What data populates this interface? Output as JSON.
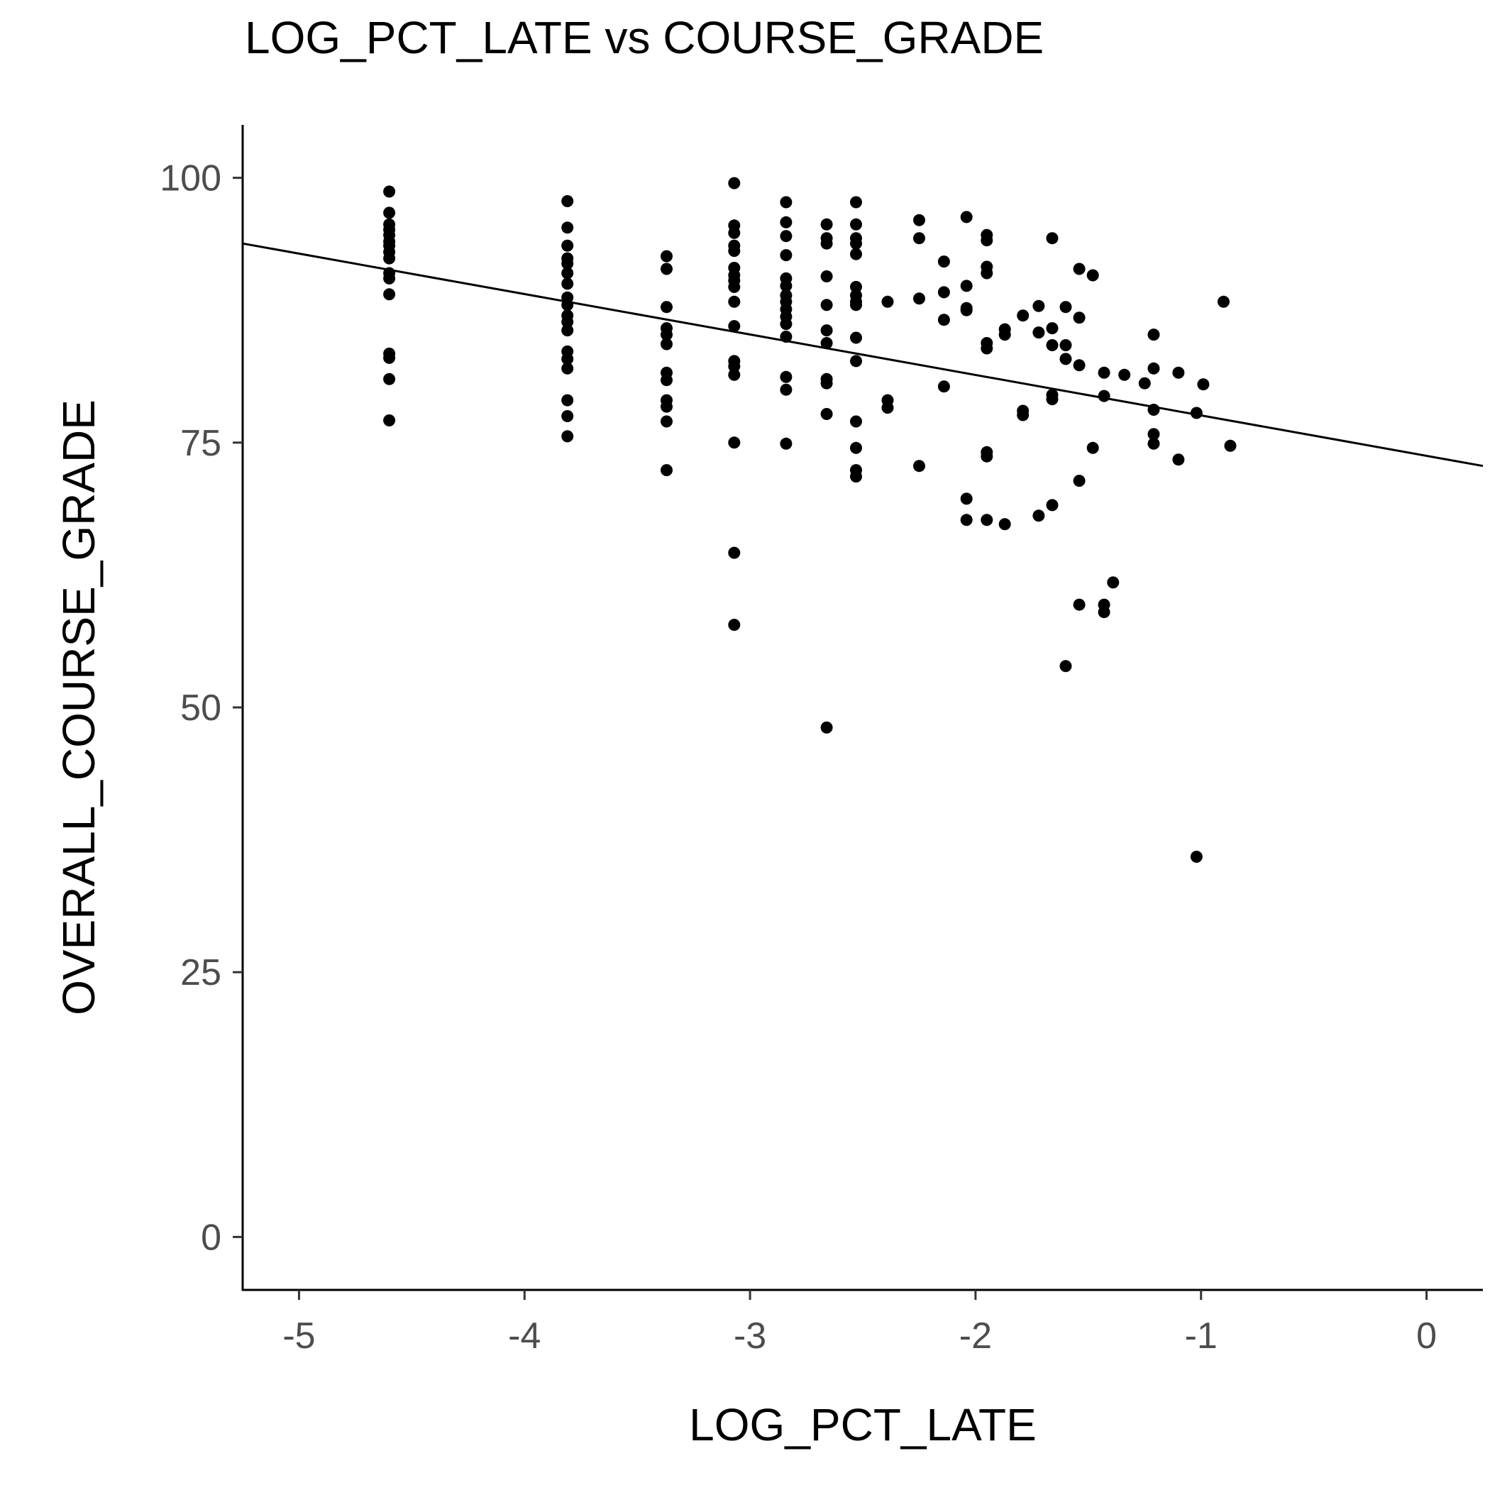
{
  "chart_data": {
    "type": "scatter",
    "title": "LOG_PCT_LATE vs COURSE_GRADE",
    "xlabel": "LOG_PCT_LATE",
    "ylabel": "OVERALL_COURSE_GRADE",
    "xlim": [
      -5.25,
      0.25
    ],
    "ylim": [
      -5,
      105
    ],
    "x_ticks": [
      -5,
      -4,
      -3,
      -2,
      -1,
      0
    ],
    "x_tick_labels": [
      "-5",
      "-4",
      "-3",
      "-2",
      "-1",
      "0"
    ],
    "y_ticks": [
      0,
      25,
      50,
      75,
      100
    ],
    "y_tick_labels": [
      "0",
      "25",
      "50",
      "75",
      "100"
    ],
    "grid": false,
    "legend": "none",
    "regression_line": {
      "x": [
        -5.25,
        0.25
      ],
      "y": [
        93.8,
        72.8
      ]
    },
    "points": [
      {
        "x": -4.6,
        "y": 98.7
      },
      {
        "x": -4.6,
        "y": 96.7
      },
      {
        "x": -4.6,
        "y": 95.6
      },
      {
        "x": -4.6,
        "y": 95.1
      },
      {
        "x": -4.6,
        "y": 94.6
      },
      {
        "x": -4.6,
        "y": 94.0
      },
      {
        "x": -4.6,
        "y": 93.6
      },
      {
        "x": -4.6,
        "y": 93.0
      },
      {
        "x": -4.6,
        "y": 92.4
      },
      {
        "x": -4.6,
        "y": 91.0
      },
      {
        "x": -4.6,
        "y": 90.5
      },
      {
        "x": -4.6,
        "y": 89.0
      },
      {
        "x": -4.6,
        "y": 83.4
      },
      {
        "x": -4.6,
        "y": 83.0
      },
      {
        "x": -4.6,
        "y": 81.0
      },
      {
        "x": -4.6,
        "y": 77.1
      },
      {
        "x": -3.81,
        "y": 97.8
      },
      {
        "x": -3.81,
        "y": 95.3
      },
      {
        "x": -3.81,
        "y": 93.6
      },
      {
        "x": -3.81,
        "y": 92.4
      },
      {
        "x": -3.81,
        "y": 91.9
      },
      {
        "x": -3.81,
        "y": 91.0
      },
      {
        "x": -3.81,
        "y": 90.0
      },
      {
        "x": -3.81,
        "y": 88.7
      },
      {
        "x": -3.81,
        "y": 88.0
      },
      {
        "x": -3.81,
        "y": 87.0
      },
      {
        "x": -3.81,
        "y": 86.4
      },
      {
        "x": -3.81,
        "y": 85.6
      },
      {
        "x": -3.81,
        "y": 83.6
      },
      {
        "x": -3.81,
        "y": 82.9
      },
      {
        "x": -3.81,
        "y": 82.0
      },
      {
        "x": -3.81,
        "y": 79.0
      },
      {
        "x": -3.81,
        "y": 77.5
      },
      {
        "x": -3.81,
        "y": 75.6
      },
      {
        "x": -3.37,
        "y": 92.6
      },
      {
        "x": -3.37,
        "y": 91.4
      },
      {
        "x": -3.37,
        "y": 87.8
      },
      {
        "x": -3.37,
        "y": 85.8
      },
      {
        "x": -3.37,
        "y": 85.2
      },
      {
        "x": -3.37,
        "y": 84.3
      },
      {
        "x": -3.37,
        "y": 81.6
      },
      {
        "x": -3.37,
        "y": 80.9
      },
      {
        "x": -3.37,
        "y": 79.0
      },
      {
        "x": -3.37,
        "y": 78.4
      },
      {
        "x": -3.37,
        "y": 77.0
      },
      {
        "x": -3.37,
        "y": 72.4
      },
      {
        "x": -3.07,
        "y": 99.5
      },
      {
        "x": -3.07,
        "y": 95.5
      },
      {
        "x": -3.07,
        "y": 94.8
      },
      {
        "x": -3.07,
        "y": 93.6
      },
      {
        "x": -3.07,
        "y": 93.1
      },
      {
        "x": -3.07,
        "y": 91.5
      },
      {
        "x": -3.07,
        "y": 90.8
      },
      {
        "x": -3.07,
        "y": 90.3
      },
      {
        "x": -3.07,
        "y": 89.7
      },
      {
        "x": -3.07,
        "y": 88.3
      },
      {
        "x": -3.07,
        "y": 86.0
      },
      {
        "x": -3.07,
        "y": 82.7
      },
      {
        "x": -3.07,
        "y": 82.2
      },
      {
        "x": -3.07,
        "y": 81.4
      },
      {
        "x": -3.07,
        "y": 75.0
      },
      {
        "x": -3.07,
        "y": 64.6
      },
      {
        "x": -3.07,
        "y": 57.8
      },
      {
        "x": -2.84,
        "y": 97.7
      },
      {
        "x": -2.84,
        "y": 95.8
      },
      {
        "x": -2.84,
        "y": 94.5
      },
      {
        "x": -2.84,
        "y": 92.7
      },
      {
        "x": -2.84,
        "y": 90.5
      },
      {
        "x": -2.84,
        "y": 89.8
      },
      {
        "x": -2.84,
        "y": 88.9
      },
      {
        "x": -2.84,
        "y": 88.3
      },
      {
        "x": -2.84,
        "y": 87.6
      },
      {
        "x": -2.84,
        "y": 86.9
      },
      {
        "x": -2.84,
        "y": 86.2
      },
      {
        "x": -2.84,
        "y": 85.0
      },
      {
        "x": -2.84,
        "y": 81.2
      },
      {
        "x": -2.84,
        "y": 80.0
      },
      {
        "x": -2.84,
        "y": 74.9
      },
      {
        "x": -2.66,
        "y": 95.6
      },
      {
        "x": -2.66,
        "y": 94.3
      },
      {
        "x": -2.66,
        "y": 93.8
      },
      {
        "x": -2.66,
        "y": 90.7
      },
      {
        "x": -2.66,
        "y": 88.0
      },
      {
        "x": -2.66,
        "y": 85.6
      },
      {
        "x": -2.66,
        "y": 84.4
      },
      {
        "x": -2.66,
        "y": 81.0
      },
      {
        "x": -2.66,
        "y": 80.6
      },
      {
        "x": -2.66,
        "y": 77.7
      },
      {
        "x": -2.66,
        "y": 48.1
      },
      {
        "x": -2.53,
        "y": 97.7
      },
      {
        "x": -2.53,
        "y": 95.6
      },
      {
        "x": -2.53,
        "y": 94.3
      },
      {
        "x": -2.53,
        "y": 93.8
      },
      {
        "x": -2.53,
        "y": 92.8
      },
      {
        "x": -2.53,
        "y": 89.7
      },
      {
        "x": -2.53,
        "y": 88.9
      },
      {
        "x": -2.53,
        "y": 88.3
      },
      {
        "x": -2.53,
        "y": 88.0
      },
      {
        "x": -2.53,
        "y": 84.9
      },
      {
        "x": -2.53,
        "y": 82.7
      },
      {
        "x": -2.53,
        "y": 77.0
      },
      {
        "x": -2.53,
        "y": 74.5
      },
      {
        "x": -2.53,
        "y": 72.4
      },
      {
        "x": -2.53,
        "y": 71.8
      },
      {
        "x": -2.39,
        "y": 88.3
      },
      {
        "x": -2.39,
        "y": 79.0
      },
      {
        "x": -2.39,
        "y": 78.3
      },
      {
        "x": -2.25,
        "y": 96.0
      },
      {
        "x": -2.25,
        "y": 94.3
      },
      {
        "x": -2.25,
        "y": 88.6
      },
      {
        "x": -2.25,
        "y": 72.8
      },
      {
        "x": -2.14,
        "y": 92.1
      },
      {
        "x": -2.14,
        "y": 89.2
      },
      {
        "x": -2.14,
        "y": 86.6
      },
      {
        "x": -2.14,
        "y": 80.3
      },
      {
        "x": -2.04,
        "y": 96.3
      },
      {
        "x": -2.04,
        "y": 89.8
      },
      {
        "x": -2.04,
        "y": 87.7
      },
      {
        "x": -2.04,
        "y": 87.5
      },
      {
        "x": -2.04,
        "y": 69.7
      },
      {
        "x": -2.04,
        "y": 67.7
      },
      {
        "x": -1.95,
        "y": 94.6
      },
      {
        "x": -1.95,
        "y": 94.1
      },
      {
        "x": -1.95,
        "y": 91.6
      },
      {
        "x": -1.95,
        "y": 91.0
      },
      {
        "x": -1.95,
        "y": 84.4
      },
      {
        "x": -1.95,
        "y": 83.9
      },
      {
        "x": -1.95,
        "y": 74.1
      },
      {
        "x": -1.95,
        "y": 73.7
      },
      {
        "x": -1.95,
        "y": 67.7
      },
      {
        "x": -1.87,
        "y": 85.7
      },
      {
        "x": -1.87,
        "y": 85.2
      },
      {
        "x": -1.87,
        "y": 67.3
      },
      {
        "x": -1.79,
        "y": 87.0
      },
      {
        "x": -1.79,
        "y": 78.0
      },
      {
        "x": -1.79,
        "y": 77.6
      },
      {
        "x": -1.72,
        "y": 87.9
      },
      {
        "x": -1.72,
        "y": 85.4
      },
      {
        "x": -1.72,
        "y": 68.1
      },
      {
        "x": -1.66,
        "y": 94.3
      },
      {
        "x": -1.66,
        "y": 85.8
      },
      {
        "x": -1.66,
        "y": 84.2
      },
      {
        "x": -1.66,
        "y": 79.5
      },
      {
        "x": -1.66,
        "y": 79.1
      },
      {
        "x": -1.66,
        "y": 69.1
      },
      {
        "x": -1.6,
        "y": 87.8
      },
      {
        "x": -1.6,
        "y": 84.2
      },
      {
        "x": -1.6,
        "y": 82.9
      },
      {
        "x": -1.6,
        "y": 53.9
      },
      {
        "x": -1.54,
        "y": 91.4
      },
      {
        "x": -1.54,
        "y": 86.8
      },
      {
        "x": -1.54,
        "y": 82.3
      },
      {
        "x": -1.54,
        "y": 71.4
      },
      {
        "x": -1.54,
        "y": 59.7
      },
      {
        "x": -1.48,
        "y": 90.8
      },
      {
        "x": -1.48,
        "y": 74.5
      },
      {
        "x": -1.43,
        "y": 81.6
      },
      {
        "x": -1.43,
        "y": 79.4
      },
      {
        "x": -1.43,
        "y": 59.7
      },
      {
        "x": -1.43,
        "y": 59.0
      },
      {
        "x": -1.39,
        "y": 61.8
      },
      {
        "x": -1.34,
        "y": 81.4
      },
      {
        "x": -1.25,
        "y": 80.6
      },
      {
        "x": -1.21,
        "y": 85.2
      },
      {
        "x": -1.21,
        "y": 82.0
      },
      {
        "x": -1.21,
        "y": 78.1
      },
      {
        "x": -1.21,
        "y": 75.8
      },
      {
        "x": -1.21,
        "y": 74.9
      },
      {
        "x": -1.1,
        "y": 81.6
      },
      {
        "x": -1.1,
        "y": 73.4
      },
      {
        "x": -1.02,
        "y": 77.8
      },
      {
        "x": -1.02,
        "y": 35.9
      },
      {
        "x": -0.99,
        "y": 80.5
      },
      {
        "x": -0.9,
        "y": 88.3
      },
      {
        "x": -0.87,
        "y": 74.7
      }
    ]
  }
}
